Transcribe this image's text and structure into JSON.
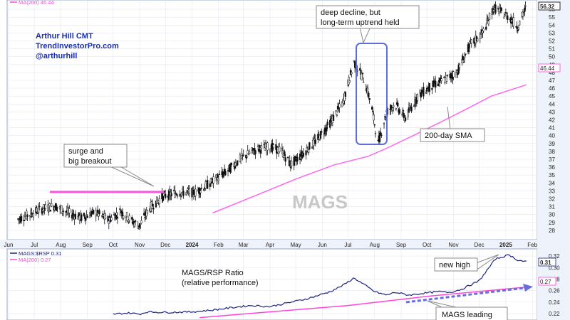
{
  "chart_data": [
    {
      "type": "candlestick",
      "symbol": "MAGS",
      "watermark": "MAGS",
      "x_ticks": [
        "Jun",
        "Jul",
        "Aug",
        "Sep",
        "Oct",
        "Nov",
        "Dec",
        "2024",
        "Feb",
        "Mar",
        "Apr",
        "May",
        "Jun",
        "Jul",
        "Aug",
        "Sep",
        "Oct",
        "Nov",
        "Dec",
        "2025",
        "Feb"
      ],
      "y_ticks": [
        28,
        29,
        30,
        31,
        32,
        33,
        34,
        35,
        36,
        37,
        38,
        39,
        40,
        41,
        42,
        43,
        44,
        45,
        46,
        47,
        48,
        49,
        50,
        51,
        52,
        53,
        54,
        55,
        56
      ],
      "ylim": [
        27,
        57
      ],
      "legend": {
        "ma": "MA(200) 46.44"
      },
      "last_price": "56.32",
      "ma_label": "46.44",
      "series": [
        {
          "name": "MAGS",
          "points": [
            [
              "2023-06-10",
              29.3
            ],
            [
              "2023-06-25",
              30.0
            ],
            [
              "2023-07-10",
              30.7
            ],
            [
              "2023-07-25",
              31.1
            ],
            [
              "2023-08-10",
              30.2
            ],
            [
              "2023-08-25",
              29.6
            ],
            [
              "2023-09-10",
              30.3
            ],
            [
              "2023-09-25",
              29.3
            ],
            [
              "2023-10-10",
              30.4
            ],
            [
              "2023-10-25",
              29.0
            ],
            [
              "2023-11-01",
              28.6
            ],
            [
              "2023-11-12",
              30.8
            ],
            [
              "2023-11-28",
              32.3
            ],
            [
              "2023-12-15",
              32.8
            ],
            [
              "2024-01-05",
              32.8
            ],
            [
              "2024-01-25",
              34.2
            ],
            [
              "2024-02-10",
              35.4
            ],
            [
              "2024-02-28",
              37.2
            ],
            [
              "2024-03-15",
              38.2
            ],
            [
              "2024-04-01",
              38.6
            ],
            [
              "2024-04-15",
              38.0
            ],
            [
              "2024-04-25",
              36.3
            ],
            [
              "2024-05-10",
              37.8
            ],
            [
              "2024-05-25",
              39.4
            ],
            [
              "2024-06-10",
              41.6
            ],
            [
              "2024-06-25",
              44.2
            ],
            [
              "2024-07-08",
              49.3
            ],
            [
              "2024-07-20",
              47.0
            ],
            [
              "2024-07-28",
              44.0
            ],
            [
              "2024-08-05",
              39.0
            ],
            [
              "2024-08-15",
              43.0
            ],
            [
              "2024-08-25",
              44.0
            ],
            [
              "2024-09-06",
              42.2
            ],
            [
              "2024-09-20",
              45.0
            ],
            [
              "2024-10-05",
              46.2
            ],
            [
              "2024-10-20",
              47.0
            ],
            [
              "2024-11-05",
              48.0
            ],
            [
              "2024-11-20",
              51.4
            ],
            [
              "2024-12-05",
              53.0
            ],
            [
              "2024-12-18",
              56.2
            ],
            [
              "2025-01-05",
              55.0
            ],
            [
              "2025-01-15",
              53.8
            ],
            [
              "2025-01-25",
              56.3
            ]
          ]
        },
        {
          "name": "MA(200)",
          "points": [
            [
              "2024-01-25",
              30.2
            ],
            [
              "2024-03-15",
              32.4
            ],
            [
              "2024-05-01",
              34.5
            ],
            [
              "2024-06-15",
              36.3
            ],
            [
              "2024-07-25",
              37.4
            ],
            [
              "2024-08-15",
              38.4
            ],
            [
              "2024-09-15",
              40.0
            ],
            [
              "2024-10-15",
              41.6
            ],
            [
              "2024-11-15",
              43.3
            ],
            [
              "2024-12-15",
              45.0
            ],
            [
              "2025-01-25",
              46.44
            ]
          ]
        }
      ]
    },
    {
      "type": "line",
      "legend": {
        "series": "MAGS:$RSP 0.31",
        "ma": "MA(200) 0.27"
      },
      "last_value": "0.31",
      "ma_label": "0.27",
      "y_ticks": [
        0.22,
        0.24,
        0.26,
        0.28,
        0.3,
        0.32
      ],
      "ylim": [
        0.21,
        0.33
      ],
      "series": [
        {
          "name": "MAGS:$RSP",
          "points": [
            [
              "2023-10-01",
              0.219
            ],
            [
              "2023-10-20",
              0.221
            ],
            [
              "2023-11-01",
              0.219
            ],
            [
              "2023-11-10",
              0.223
            ],
            [
              "2023-12-01",
              0.222
            ],
            [
              "2024-01-01",
              0.223
            ],
            [
              "2024-01-25",
              0.226
            ],
            [
              "2024-02-20",
              0.231
            ],
            [
              "2024-03-10",
              0.234
            ],
            [
              "2024-04-01",
              0.232
            ],
            [
              "2024-04-20",
              0.238
            ],
            [
              "2024-05-15",
              0.246
            ],
            [
              "2024-06-10",
              0.258
            ],
            [
              "2024-06-25",
              0.269
            ],
            [
              "2024-07-08",
              0.282
            ],
            [
              "2024-07-20",
              0.27
            ],
            [
              "2024-08-01",
              0.258
            ],
            [
              "2024-08-15",
              0.252
            ],
            [
              "2024-08-25",
              0.257
            ],
            [
              "2024-09-10",
              0.252
            ],
            [
              "2024-09-25",
              0.255
            ],
            [
              "2024-10-15",
              0.258
            ],
            [
              "2024-10-28",
              0.257
            ],
            [
              "2024-11-10",
              0.262
            ],
            [
              "2024-12-01",
              0.277
            ],
            [
              "2024-12-20",
              0.315
            ],
            [
              "2025-01-05",
              0.322
            ],
            [
              "2025-01-15",
              0.313
            ],
            [
              "2025-01-25",
              0.31
            ]
          ]
        },
        {
          "name": "MA(200)",
          "points": [
            [
              "2024-01-10",
              0.213
            ],
            [
              "2024-04-01",
              0.223
            ],
            [
              "2024-07-01",
              0.234
            ],
            [
              "2024-10-01",
              0.25
            ],
            [
              "2025-01-10",
              0.264
            ],
            [
              "2025-01-25",
              0.266
            ]
          ]
        }
      ]
    }
  ],
  "author": {
    "name": "Arthur Hill CMT",
    "site": "TrendInvestorPro.com",
    "handle": "@arthurhill"
  },
  "annotations": {
    "surge1": "surge and",
    "surge2": "big breakout",
    "decline1": "deep decline, but",
    "decline2": "long-term uptrend held",
    "sma": "200-day SMA",
    "ratio1": "MAGS/RSP Ratio",
    "ratio2": "(relative performance)",
    "new_high": "new high",
    "leading": "MAGS leading"
  },
  "colors": {
    "candle": "#000000",
    "ma": "#ff44dd",
    "ratio": "#1a237e",
    "annotation": "#1a2fb0",
    "box": "#5b6fd6",
    "axis_bg": "#eef2fa"
  }
}
